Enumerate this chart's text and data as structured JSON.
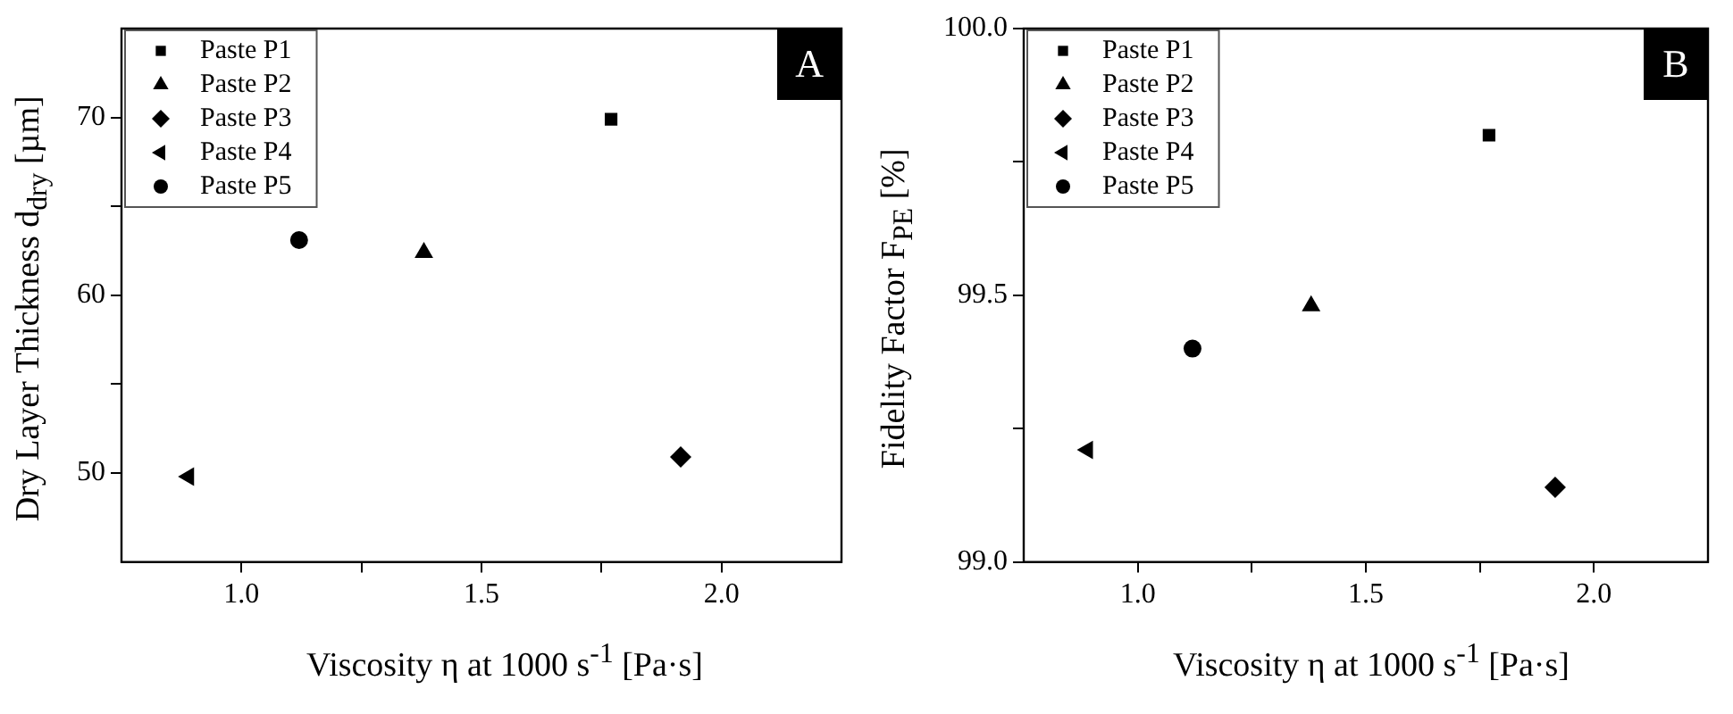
{
  "chart_data": [
    {
      "type": "scatter",
      "xlabel": "Viscosity η at 1000 s$^{-1}$ [Pa·s]",
      "ylabel": "Dry Layer Thickness d$_{dry}$ [µm]",
      "annotations": [
        "A"
      ],
      "xlim": [
        0.75,
        2.25
      ],
      "ylim": [
        45,
        75
      ],
      "xticks": [
        {
          "value": 1,
          "label": "1.0"
        },
        {
          "value": 1.25,
          "label": null
        },
        {
          "value": 1.5,
          "label": "1.5"
        },
        {
          "value": 1.75,
          "label": null
        },
        {
          "value": 2,
          "label": "2.0"
        }
      ],
      "yticks": [
        {
          "value": 50,
          "label": "50"
        },
        {
          "value": 55,
          "label": null
        },
        {
          "value": 60,
          "label": "60"
        },
        {
          "value": 65,
          "label": null
        },
        {
          "value": 70,
          "label": "70"
        }
      ],
      "grid": false,
      "legend": "top left",
      "series": [
        {
          "name": "Paste P1",
          "color": "#000000",
          "marker": "square",
          "x": [
            1.77
          ],
          "values": [
            69.9
          ]
        },
        {
          "name": "Paste P2",
          "color": "#000000",
          "marker": "triangle",
          "x": [
            1.38
          ],
          "values": [
            62.4
          ]
        },
        {
          "name": "Paste P3",
          "color": "#000000",
          "marker": "diamond",
          "x": [
            1.915
          ],
          "values": [
            50.9
          ]
        },
        {
          "name": "Paste P4",
          "color": "#000000",
          "marker": "triangle-left",
          "x": [
            0.89
          ],
          "values": [
            49.8
          ]
        },
        {
          "name": "Paste P5",
          "color": "#000000",
          "marker": "circle",
          "x": [
            1.12
          ],
          "values": [
            63.1
          ]
        }
      ]
    },
    {
      "type": "scatter",
      "xlabel": "Viscosity η at 1000 s$^{-1}$ [Pa·s]",
      "ylabel": "Fidelity Factor F$_{PE}$ [%]",
      "annotations": [
        "B"
      ],
      "xlim": [
        0.75,
        2.25
      ],
      "ylim": [
        99,
        100
      ],
      "xticks": [
        {
          "value": 1,
          "label": "1.0"
        },
        {
          "value": 1.25,
          "label": null
        },
        {
          "value": 1.5,
          "label": "1.5"
        },
        {
          "value": 1.75,
          "label": null
        },
        {
          "value": 2,
          "label": "2.0"
        }
      ],
      "yticks": [
        {
          "value": 99,
          "label": "99.0"
        },
        {
          "value": 99.25,
          "label": null
        },
        {
          "value": 99.5,
          "label": "99.5"
        },
        {
          "value": 99.75,
          "label": null
        },
        {
          "value": 100,
          "label": "100.0"
        }
      ],
      "grid": false,
      "legend": "top left",
      "series": [
        {
          "name": "Paste P1",
          "color": "#000000",
          "marker": "square",
          "x": [
            1.77
          ],
          "values": [
            99.8
          ]
        },
        {
          "name": "Paste P2",
          "color": "#000000",
          "marker": "triangle",
          "x": [
            1.38
          ],
          "values": [
            99.48
          ]
        },
        {
          "name": "Paste P3",
          "color": "#000000",
          "marker": "diamond",
          "x": [
            1.915
          ],
          "values": [
            99.14
          ]
        },
        {
          "name": "Paste P4",
          "color": "#000000",
          "marker": "triangle-left",
          "x": [
            0.89
          ],
          "values": [
            99.21
          ]
        },
        {
          "name": "Paste P5",
          "color": "#000000",
          "marker": "circle",
          "x": [
            1.12
          ],
          "values": [
            99.4
          ]
        }
      ]
    }
  ]
}
